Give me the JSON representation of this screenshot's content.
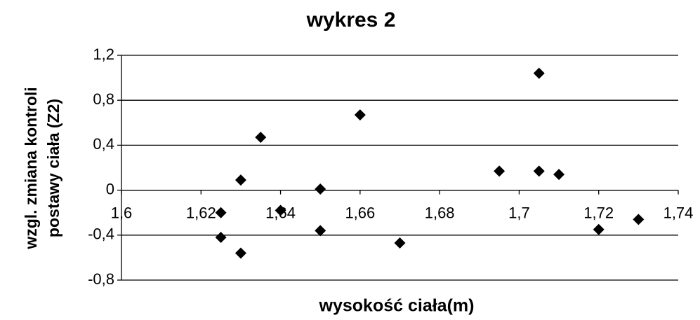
{
  "chart_data": {
    "type": "scatter",
    "title": "wykres 2",
    "xlabel": "wysokość ciała(m)",
    "ylabel": [
      "wzgl. zmiana kontroli",
      "postawy ciała (Z2)"
    ],
    "x": [
      1.625,
      1.625,
      1.63,
      1.63,
      1.635,
      1.64,
      1.65,
      1.65,
      1.66,
      1.67,
      1.695,
      1.705,
      1.705,
      1.71,
      1.72,
      1.73
    ],
    "values": [
      -0.2,
      -0.42,
      0.09,
      -0.56,
      0.47,
      -0.18,
      0.01,
      -0.36,
      0.67,
      -0.47,
      0.17,
      1.04,
      0.17,
      0.14,
      -0.35,
      -0.26
    ],
    "color": "#000000",
    "xlim": [
      1.6,
      1.74
    ],
    "xticks": [
      {
        "value": 1.6,
        "label": "1,6"
      },
      {
        "value": 1.62,
        "label": "1,62"
      },
      {
        "value": 1.64,
        "label": "1,64"
      },
      {
        "value": 1.66,
        "label": "1,66"
      },
      {
        "value": 1.68,
        "label": "1,68"
      },
      {
        "value": 1.7,
        "label": "1,7"
      },
      {
        "value": 1.72,
        "label": "1,72"
      },
      {
        "value": 1.74,
        "label": "1,74"
      }
    ],
    "ylim": [
      -0.8,
      1.2
    ],
    "yticks": [
      {
        "value": -0.8,
        "label": "-0,8"
      },
      {
        "value": -0.4,
        "label": "-0,4"
      },
      0,
      {
        "value": 0.4,
        "label": "0,4"
      },
      {
        "value": 0.8,
        "label": "0,8"
      },
      {
        "value": 1.2,
        "label": "1,2"
      }
    ],
    "grid": true
  }
}
